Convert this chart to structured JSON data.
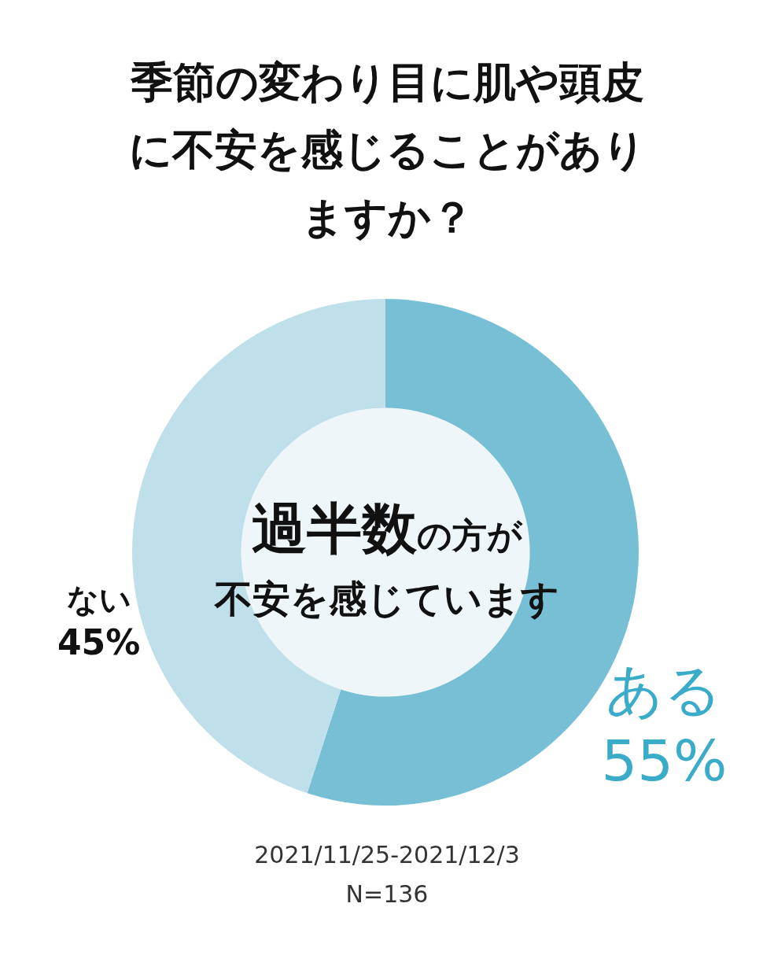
{
  "chart_data": {
    "type": "donut",
    "title": "季節の変わり目に肌や頭皮に不安を感じることがありますか？",
    "categories": [
      "ある",
      "ない"
    ],
    "values": [
      55,
      45
    ],
    "colors": [
      "#77bfd4",
      "#bfe0ea"
    ],
    "value_labels": [
      "55%",
      "45%"
    ],
    "legend": false,
    "annotations": [
      "過半数",
      "の方が",
      "不安を感じています",
      "2021/11/25-2021/12/3",
      "N=136"
    ]
  }
}
